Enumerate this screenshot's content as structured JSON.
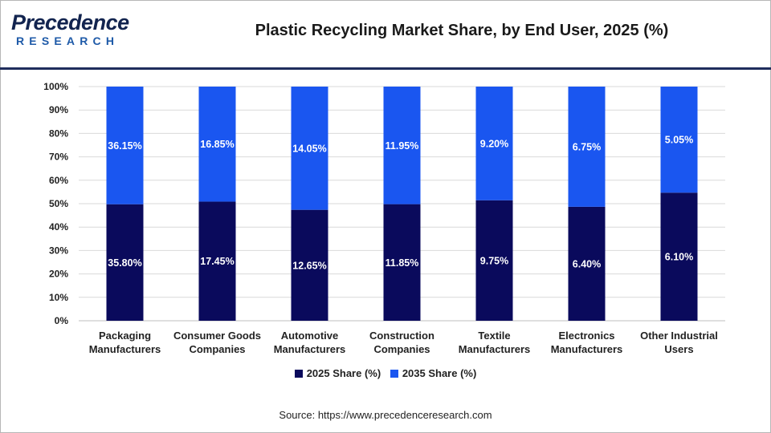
{
  "header": {
    "logo_brand": "Precedence",
    "logo_sub": "RESEARCH",
    "title": "Plastic Recycling Market Share, by End User, 2025 (%)"
  },
  "footer": {
    "source": "Source: https://www.precedenceresearch.com"
  },
  "colors": {
    "series_2025": "#0a0a5c",
    "series_2035": "#1a56f0",
    "header_rule": "#1f2d5c",
    "gridline": "#d9d9d9"
  },
  "chart_data": {
    "type": "bar",
    "stacked": true,
    "normalized_percent": true,
    "title": "Plastic Recycling Market Share, by End User, 2025 (%)",
    "categories": [
      [
        "Packaging",
        "Manufacturers"
      ],
      [
        "Consumer Goods",
        "Companies"
      ],
      [
        "Automotive",
        "Manufacturers"
      ],
      [
        "Construction",
        "Companies"
      ],
      [
        "Textile",
        "Manufacturers"
      ],
      [
        "Electronics",
        "Manufacturers"
      ],
      [
        "Other Industrial",
        "Users"
      ]
    ],
    "series": [
      {
        "name": "2025 Share (%)",
        "values": [
          35.8,
          17.45,
          12.65,
          11.85,
          9.75,
          6.4,
          6.1
        ],
        "labels": [
          "35.80%",
          "17.45%",
          "12.65%",
          "11.85%",
          "9.75%",
          "6.40%",
          "6.10%"
        ]
      },
      {
        "name": "2035 Share (%)",
        "values": [
          36.15,
          16.85,
          14.05,
          11.95,
          9.2,
          6.75,
          5.05
        ],
        "labels": [
          "36.15%",
          "16.85%",
          "14.05%",
          "11.95%",
          "9.20%",
          "6.75%",
          "5.05%"
        ]
      }
    ],
    "y_ticks": [
      "0%",
      "10%",
      "20%",
      "30%",
      "40%",
      "50%",
      "60%",
      "70%",
      "80%",
      "90%",
      "100%"
    ],
    "ylim": [
      0,
      100
    ],
    "grid": true,
    "legend_position": "bottom"
  }
}
